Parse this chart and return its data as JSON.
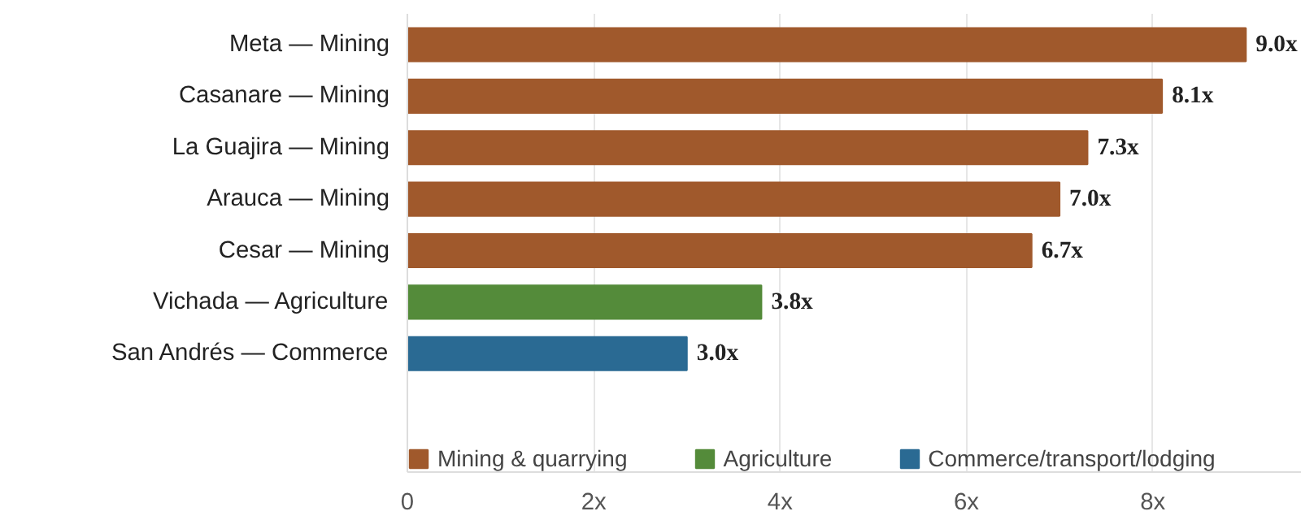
{
  "chart_data": {
    "type": "bar",
    "orientation": "horizontal",
    "categories": [
      "Meta — Mining",
      "Casanare — Mining",
      "La Guajira — Mining",
      "Arauca — Mining",
      "Cesar — Mining",
      "Vichada — Agriculture",
      "San Andrés — Commerce"
    ],
    "series": [
      {
        "name": "Mining & quarrying",
        "color": "#a0592c",
        "values": [
          9.0,
          8.1,
          7.3,
          7.0,
          6.7,
          null,
          null
        ],
        "value_labels": [
          "9.0x",
          "8.1x",
          "7.3x",
          "7.0x",
          "6.7x",
          null,
          null
        ]
      },
      {
        "name": "Agriculture",
        "color": "#548b3a",
        "values": [
          null,
          null,
          null,
          null,
          null,
          3.8,
          null
        ],
        "value_labels": [
          null,
          null,
          null,
          null,
          null,
          "3.8x",
          null
        ]
      },
      {
        "name": "Commerce/transport/lodging",
        "color": "#2a6a93",
        "values": [
          null,
          null,
          null,
          null,
          null,
          null,
          3.0
        ],
        "value_labels": [
          null,
          null,
          null,
          null,
          null,
          null,
          "3.0x"
        ]
      }
    ],
    "xlim": [
      0,
      9.6
    ],
    "xticks": [
      0,
      {
        "value": 2,
        "label": "2x"
      },
      {
        "value": 4,
        "label": "4x"
      },
      {
        "value": 6,
        "label": "6x"
      },
      {
        "value": 8,
        "label": "8x"
      }
    ],
    "grid": "x",
    "legend": "bottom"
  }
}
